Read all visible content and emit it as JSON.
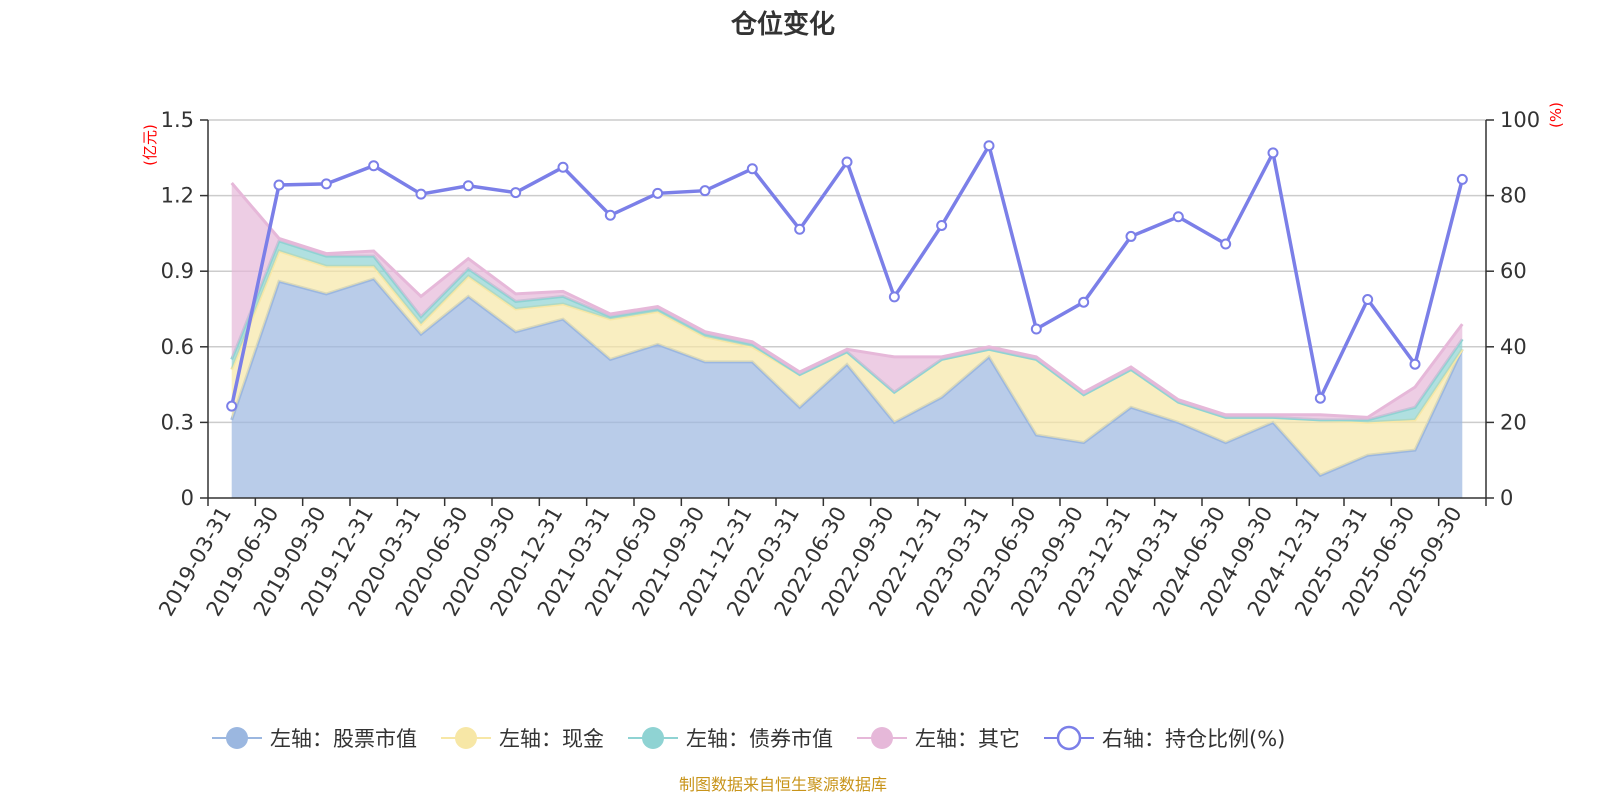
{
  "chart_data": {
    "type": "area",
    "title": "仓位变化",
    "left_axis": {
      "unit": "(亿元)",
      "ylim": [
        0,
        1.5
      ],
      "ticks": [
        "0",
        "0.3",
        "0.6",
        "0.9",
        "1.2",
        "1.5"
      ],
      "tick_values": [
        0,
        0.3,
        0.6,
        0.9,
        1.2,
        1.5
      ]
    },
    "right_axis": {
      "unit": "(%)",
      "ylim": [
        0,
        100
      ],
      "ticks": [
        "0",
        "20",
        "40",
        "60",
        "80",
        "100"
      ],
      "tick_values": [
        0,
        20,
        40,
        60,
        80,
        100
      ]
    },
    "categories": [
      "2019-03-31",
      "2019-06-30",
      "2019-09-30",
      "2019-12-31",
      "2020-03-31",
      "2020-06-30",
      "2020-09-30",
      "2020-12-31",
      "2021-03-31",
      "2021-06-30",
      "2021-09-30",
      "2021-12-31",
      "2022-03-31",
      "2022-06-30",
      "2022-09-30",
      "2022-12-31",
      "2023-03-31",
      "2023-06-30",
      "2023-09-30",
      "2023-12-31",
      "2024-03-31",
      "2024-06-30",
      "2024-09-30",
      "2024-12-31",
      "2025-03-31",
      "2025-06-30",
      "2025-09-30"
    ],
    "series": [
      {
        "name": "左轴：股票市值",
        "axis": "left",
        "color": "#9bb7e0",
        "values": [
          0.31,
          0.86,
          0.81,
          0.87,
          0.65,
          0.8,
          0.66,
          0.71,
          0.55,
          0.61,
          0.54,
          0.54,
          0.36,
          0.53,
          0.3,
          0.4,
          0.56,
          0.25,
          0.22,
          0.36,
          0.3,
          0.22,
          0.3,
          0.09,
          0.17,
          0.19,
          0.59
        ]
      },
      {
        "name": "左轴：现金",
        "axis": "left",
        "color": "#f7e7a6",
        "values": [
          0.2,
          0.12,
          0.11,
          0.05,
          0.04,
          0.08,
          0.09,
          0.06,
          0.16,
          0.13,
          0.1,
          0.06,
          0.13,
          0.05,
          0.12,
          0.15,
          0.03,
          0.3,
          0.19,
          0.15,
          0.08,
          0.1,
          0.02,
          0.22,
          0.13,
          0.12,
          0.0
        ]
      },
      {
        "name": "左轴：债券市值",
        "axis": "left",
        "color": "#8fd3d3",
        "values": [
          0.04,
          0.04,
          0.04,
          0.04,
          0.03,
          0.03,
          0.03,
          0.03,
          0.01,
          0.01,
          0.01,
          0.01,
          0.0,
          0.0,
          0.0,
          0.0,
          0.0,
          0.0,
          0.0,
          0.0,
          0.0,
          0.0,
          0.0,
          0.0,
          0.01,
          0.05,
          0.04
        ]
      },
      {
        "name": "左轴：其它",
        "axis": "left",
        "color": "#e6b8d9",
        "values": [
          0.7,
          0.01,
          0.01,
          0.02,
          0.08,
          0.04,
          0.03,
          0.02,
          0.01,
          0.01,
          0.01,
          0.01,
          0.01,
          0.01,
          0.14,
          0.01,
          0.01,
          0.01,
          0.01,
          0.01,
          0.01,
          0.01,
          0.01,
          0.02,
          0.01,
          0.08,
          0.06
        ]
      },
      {
        "name": "右轴：持仓比例(%)",
        "axis": "right",
        "color": "#7b7fe8",
        "values": [
          24.3,
          82.8,
          83.1,
          87.9,
          80.4,
          82.6,
          80.8,
          87.5,
          74.8,
          80.6,
          81.3,
          87.1,
          71.1,
          88.9,
          53.2,
          72.1,
          93.2,
          44.7,
          51.8,
          69.2,
          74.4,
          67.2,
          91.3,
          26.4,
          52.5,
          35.4,
          84.3
        ]
      }
    ],
    "legend_position": "bottom",
    "grid": true
  },
  "footer": {
    "source": "制图数据来自恒生聚源数据库"
  }
}
